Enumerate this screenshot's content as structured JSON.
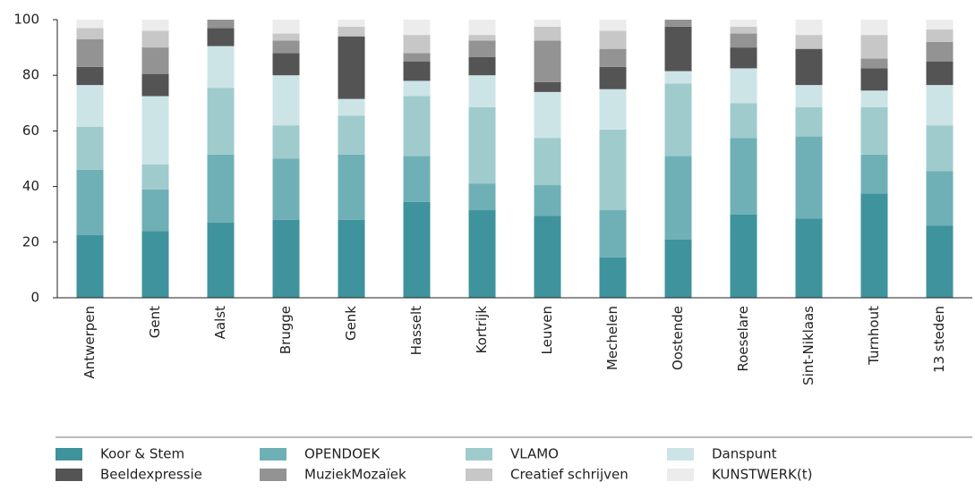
{
  "chart_data": {
    "type": "stacked_bar",
    "categories": [
      "Antwerpen",
      "Gent",
      "Aalst",
      "Brugge",
      "Genk",
      "Hasselt",
      "Kortrijk",
      "Leuven",
      "Mechelen",
      "Oostende",
      "Roeselare",
      "Sint-Niklaas",
      "Turnhout",
      "13 steden"
    ],
    "series": [
      {
        "name": "Koor & Stem",
        "color": "#3f939c",
        "values": [
          22.5,
          24,
          27,
          28,
          28,
          34.5,
          31.5,
          29.5,
          14.5,
          21,
          30,
          28.5,
          37.5,
          26
        ]
      },
      {
        "name": "OPENDOEK",
        "color": "#6fb0b6",
        "values": [
          23.5,
          15,
          24.5,
          22,
          23.5,
          16.5,
          9.5,
          11,
          17,
          30,
          27.5,
          29.5,
          14,
          19.5
        ]
      },
      {
        "name": "VLAMO",
        "color": "#9fcbcd",
        "values": [
          15.5,
          9,
          24,
          12,
          14,
          21.5,
          27.5,
          17,
          29,
          26,
          12.5,
          10.5,
          17,
          16.5
        ]
      },
      {
        "name": "Danspunt",
        "color": "#cde4e6",
        "values": [
          15,
          24.5,
          15,
          18,
          6,
          5.5,
          11.5,
          16.5,
          14.5,
          4.5,
          12.5,
          8,
          6,
          14.5
        ]
      },
      {
        "name": "Beeldexpressie",
        "color": "#545454",
        "values": [
          6.5,
          8,
          6.5,
          8,
          22.5,
          7,
          6.5,
          3.5,
          8,
          16,
          7.5,
          13,
          8,
          8.5
        ]
      },
      {
        "name": "MuziekMozaïek",
        "color": "#939393",
        "values": [
          10,
          9.5,
          3,
          4.5,
          0,
          3,
          6,
          15,
          6.5,
          2.5,
          5,
          0,
          3.5,
          7
        ]
      },
      {
        "name": "Creatief schrijven",
        "color": "#c7c7c7",
        "values": [
          4,
          6,
          0,
          2.5,
          3.5,
          6.5,
          2,
          5,
          6.5,
          0,
          2.5,
          5,
          8.5,
          4.5
        ]
      },
      {
        "name": "KUNSTWERK(t)",
        "color": "#ececec",
        "values": [
          3,
          4,
          0,
          5,
          2.5,
          5.5,
          5.5,
          2.5,
          4,
          0,
          2.5,
          5.5,
          5.5,
          3.5
        ]
      }
    ],
    "ylim": [
      0,
      100
    ],
    "yticks": [
      0,
      20,
      40,
      60,
      80,
      100
    ],
    "grid": false
  }
}
